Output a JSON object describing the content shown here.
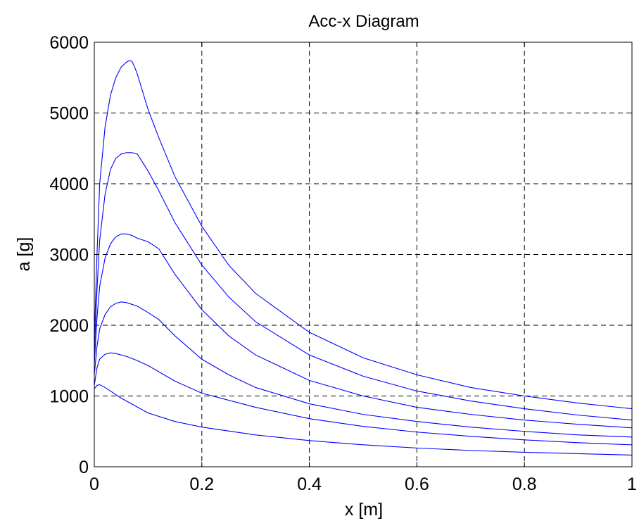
{
  "chart_data": {
    "type": "line",
    "title": "Acc-x Diagram",
    "xlabel": "x [m]",
    "ylabel": "a [g]",
    "xlim": [
      0,
      1
    ],
    "ylim": [
      0,
      6000
    ],
    "xticks": [
      0,
      0.2,
      0.4,
      0.6,
      0.8,
      1
    ],
    "xtick_labels": [
      "0",
      "0.2",
      "0.4",
      "0.6",
      "0.8",
      "1"
    ],
    "yticks": [
      0,
      1000,
      2000,
      3000,
      4000,
      5000,
      6000
    ],
    "ytick_labels": [
      "0",
      "1000",
      "2000",
      "3000",
      "4000",
      "5000",
      "6000"
    ],
    "grid": true,
    "line_color": "#0000ff",
    "series": [
      {
        "x": [
          0,
          0.005,
          0.01,
          0.02,
          0.03,
          0.05,
          0.1,
          0.15,
          0.2,
          0.3,
          0.4,
          0.5,
          0.6,
          0.7,
          0.8,
          0.9,
          1.0
        ],
        "y": [
          1100,
          1150,
          1160,
          1120,
          1070,
          970,
          760,
          640,
          560,
          450,
          370,
          310,
          265,
          230,
          205,
          185,
          165
        ]
      },
      {
        "x": [
          0,
          0.005,
          0.01,
          0.02,
          0.03,
          0.04,
          0.06,
          0.08,
          0.1,
          0.15,
          0.2,
          0.3,
          0.4,
          0.5,
          0.6,
          0.7,
          0.8,
          0.9,
          1.0
        ],
        "y": [
          1150,
          1400,
          1520,
          1590,
          1610,
          1600,
          1560,
          1500,
          1430,
          1210,
          1040,
          840,
          680,
          570,
          490,
          430,
          380,
          340,
          310
        ]
      },
      {
        "x": [
          0,
          0.005,
          0.01,
          0.02,
          0.03,
          0.04,
          0.05,
          0.06,
          0.08,
          0.1,
          0.12,
          0.15,
          0.2,
          0.25,
          0.3,
          0.4,
          0.5,
          0.6,
          0.7,
          0.8,
          0.9,
          1.0
        ],
        "y": [
          1300,
          1700,
          1950,
          2150,
          2260,
          2310,
          2330,
          2320,
          2270,
          2180,
          2080,
          1850,
          1520,
          1300,
          1120,
          890,
          740,
          640,
          560,
          500,
          450,
          420
        ]
      },
      {
        "x": [
          0,
          0.005,
          0.01,
          0.02,
          0.03,
          0.04,
          0.05,
          0.06,
          0.07,
          0.08,
          0.1,
          0.12,
          0.15,
          0.2,
          0.25,
          0.3,
          0.4,
          0.5,
          0.6,
          0.7,
          0.8,
          0.9,
          1.0
        ],
        "y": [
          1450,
          2100,
          2550,
          2950,
          3150,
          3250,
          3290,
          3290,
          3270,
          3230,
          3180,
          3080,
          2720,
          2220,
          1850,
          1580,
          1220,
          1000,
          840,
          740,
          660,
          600,
          550
        ]
      },
      {
        "x": [
          0,
          0.005,
          0.01,
          0.02,
          0.03,
          0.04,
          0.05,
          0.06,
          0.07,
          0.08,
          0.09,
          0.1,
          0.12,
          0.15,
          0.2,
          0.25,
          0.3,
          0.4,
          0.5,
          0.6,
          0.7,
          0.8,
          0.9,
          1.0
        ],
        "y": [
          1600,
          2500,
          3200,
          3850,
          4200,
          4360,
          4420,
          4440,
          4440,
          4420,
          4300,
          4180,
          3900,
          3450,
          2850,
          2400,
          2050,
          1580,
          1280,
          1070,
          930,
          820,
          730,
          660
        ]
      },
      {
        "x": [
          0,
          0.005,
          0.01,
          0.02,
          0.03,
          0.04,
          0.05,
          0.06,
          0.065,
          0.07,
          0.075,
          0.08,
          0.09,
          0.1,
          0.12,
          0.15,
          0.2,
          0.25,
          0.3,
          0.4,
          0.5,
          0.6,
          0.7,
          0.8,
          0.9,
          1.0
        ],
        "y": [
          1800,
          3000,
          4000,
          4800,
          5250,
          5500,
          5650,
          5720,
          5740,
          5730,
          5650,
          5550,
          5300,
          5050,
          4650,
          4100,
          3400,
          2850,
          2450,
          1900,
          1540,
          1300,
          1120,
          1000,
          900,
          820
        ]
      }
    ]
  }
}
